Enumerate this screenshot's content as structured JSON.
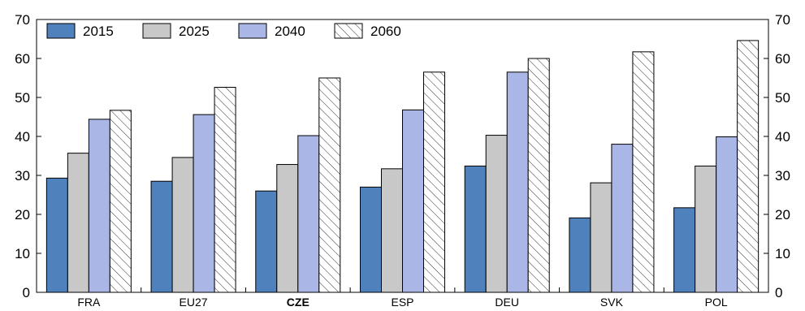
{
  "chart_data": {
    "type": "bar",
    "categories": [
      "FRA",
      "EU27",
      "CZE",
      "ESP",
      "DEU",
      "SVK",
      "POL"
    ],
    "highlight_category": "CZE",
    "series": [
      {
        "name": "2015",
        "color": "#4f81bd",
        "pattern": "solid",
        "values": [
          29.3,
          28.5,
          26.0,
          27.0,
          32.4,
          19.1,
          21.7
        ]
      },
      {
        "name": "2025",
        "color": "#c8c8c8",
        "pattern": "solid",
        "values": [
          35.7,
          34.6,
          32.8,
          31.7,
          40.3,
          28.1,
          32.4
        ]
      },
      {
        "name": "2040",
        "color": "#a9b6e6",
        "pattern": "solid",
        "values": [
          44.4,
          45.6,
          40.2,
          46.8,
          56.5,
          38.0,
          39.9
        ]
      },
      {
        "name": "2060",
        "color": "#ffffff",
        "pattern": "hatched",
        "values": [
          46.7,
          52.6,
          55.0,
          56.5,
          60.0,
          61.7,
          64.6
        ]
      }
    ],
    "ylim": [
      0,
      70
    ],
    "yticks": [
      0,
      10,
      20,
      30,
      40,
      50,
      60,
      70
    ],
    "secondary_y_axis": true,
    "grid": false,
    "legend_position": "top-left",
    "title": "",
    "xlabel": "",
    "ylabel": ""
  }
}
